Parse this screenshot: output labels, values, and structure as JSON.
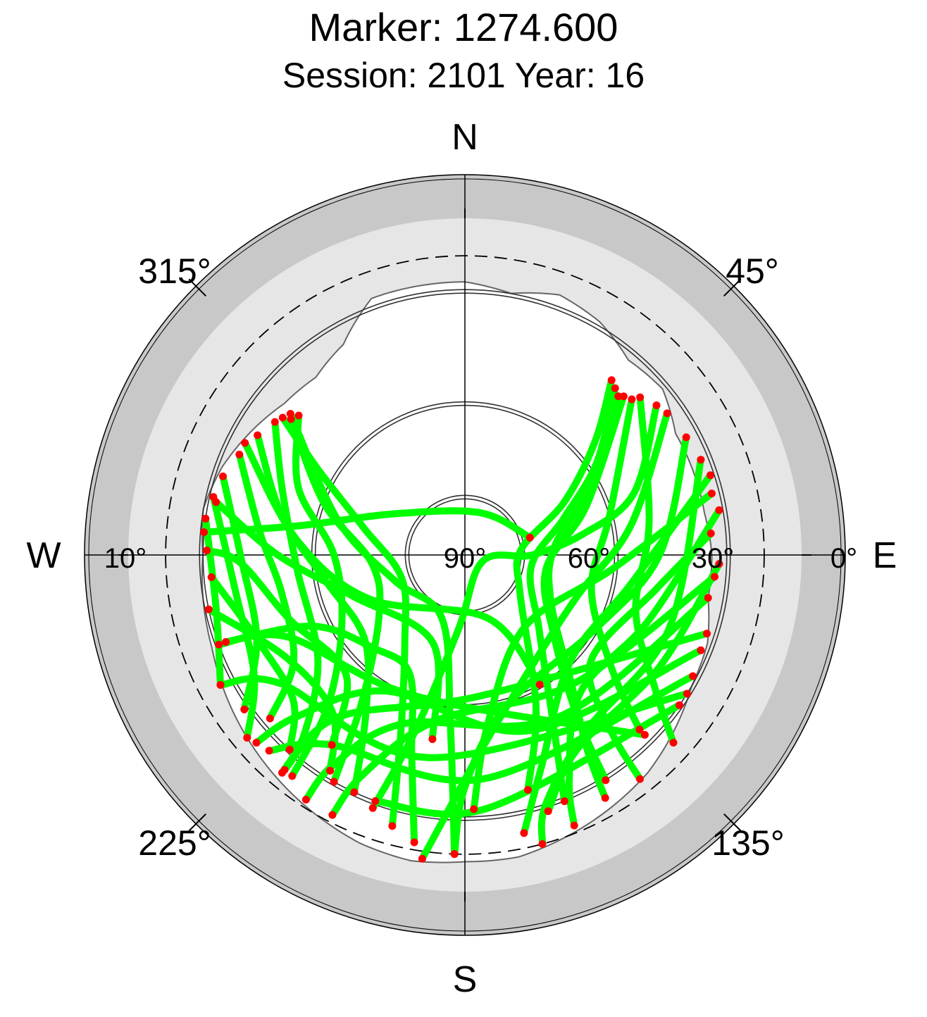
{
  "chart_data": {
    "type": "scatter",
    "projection": "polar-skyplot",
    "title": "Marker: 1274.600",
    "subtitle": "Session: 2101 Year: 16",
    "directions": {
      "north": "N",
      "south": "S",
      "west": "W",
      "east": "E"
    },
    "azimuth_ticks": [
      {
        "azimuth": 45,
        "label": "45°"
      },
      {
        "azimuth": 135,
        "label": "135°"
      },
      {
        "azimuth": 225,
        "label": "225°"
      },
      {
        "azimuth": 315,
        "label": "315°"
      }
    ],
    "elevation_ticks": [
      {
        "elevation": 90,
        "label": "90°"
      },
      {
        "elevation": 60,
        "label": "60°"
      },
      {
        "elevation": 30,
        "label": "30°"
      },
      {
        "elevation": 0,
        "label": "0°"
      },
      {
        "elevation": 10,
        "label": "10°"
      }
    ],
    "cutoff_elevation": 10,
    "elevation_rings": [
      20,
      50,
      75
    ],
    "horizon_mask": [
      {
        "az": 0,
        "el": 17
      },
      {
        "az": 10,
        "el": 19
      },
      {
        "az": 20,
        "el": 16
      },
      {
        "az": 30,
        "el": 18
      },
      {
        "az": 40,
        "el": 22
      },
      {
        "az": 50,
        "el": 21
      },
      {
        "az": 60,
        "el": 25
      },
      {
        "az": 70,
        "el": 25
      },
      {
        "az": 80,
        "el": 25
      },
      {
        "az": 90,
        "el": 24
      },
      {
        "az": 100,
        "el": 24
      },
      {
        "az": 110,
        "el": 21
      },
      {
        "az": 120,
        "el": 20
      },
      {
        "az": 130,
        "el": 17
      },
      {
        "az": 140,
        "el": 14
      },
      {
        "az": 150,
        "el": 12
      },
      {
        "az": 160,
        "el": 10
      },
      {
        "az": 170,
        "el": 8
      },
      {
        "az": 180,
        "el": 8
      },
      {
        "az": 190,
        "el": 7
      },
      {
        "az": 200,
        "el": 8
      },
      {
        "az": 210,
        "el": 10
      },
      {
        "az": 220,
        "el": 12
      },
      {
        "az": 230,
        "el": 14
      },
      {
        "az": 240,
        "el": 16
      },
      {
        "az": 250,
        "el": 18
      },
      {
        "az": 260,
        "el": 19
      },
      {
        "az": 270,
        "el": 20
      },
      {
        "az": 280,
        "el": 19
      },
      {
        "az": 290,
        "el": 21
      },
      {
        "az": 300,
        "el": 24
      },
      {
        "az": 310,
        "el": 27
      },
      {
        "az": 320,
        "el": 28
      },
      {
        "az": 330,
        "el": 25
      },
      {
        "az": 340,
        "el": 17
      },
      {
        "az": 350,
        "el": 17
      },
      {
        "az": 360,
        "el": 17
      }
    ],
    "tracks": [
      [
        {
          "az": 40,
          "el": 29
        },
        {
          "az": 49,
          "el": 44
        },
        {
          "az": 62,
          "el": 60
        },
        {
          "az": 85,
          "el": 75
        },
        {
          "az": 125,
          "el": 72
        },
        {
          "az": 155,
          "el": 45
        },
        {
          "az": 165,
          "el": 25
        }
      ],
      [
        {
          "az": 42,
          "el": 30
        },
        {
          "az": 55,
          "el": 47
        },
        {
          "az": 70,
          "el": 62
        },
        {
          "az": 100,
          "el": 72
        },
        {
          "az": 135,
          "el": 62
        },
        {
          "az": 152,
          "el": 40
        },
        {
          "az": 158,
          "el": 19
        }
      ],
      [
        {
          "az": 44,
          "el": 31
        },
        {
          "az": 60,
          "el": 50
        },
        {
          "az": 85,
          "el": 66
        },
        {
          "az": 118,
          "el": 64
        },
        {
          "az": 140,
          "el": 46
        },
        {
          "az": 148,
          "el": 28
        },
        {
          "az": 150,
          "el": 15
        }
      ],
      [
        {
          "az": 45,
          "el": 30
        },
        {
          "az": 68,
          "el": 55
        },
        {
          "az": 100,
          "el": 68
        },
        {
          "az": 132,
          "el": 58
        },
        {
          "az": 145,
          "el": 38
        },
        {
          "az": 148,
          "el": 19
        }
      ],
      [
        {
          "az": 47,
          "el": 29
        },
        {
          "az": 75,
          "el": 50
        },
        {
          "az": 105,
          "el": 55
        },
        {
          "az": 128,
          "el": 40
        },
        {
          "az": 135,
          "el": 24
        }
      ],
      [
        {
          "az": 48,
          "el": 27
        },
        {
          "az": 80,
          "el": 40
        },
        {
          "az": 108,
          "el": 42
        },
        {
          "az": 125,
          "el": 28
        },
        {
          "az": 132,
          "el": 15
        }
      ],
      [
        {
          "az": 52,
          "el": 25
        },
        {
          "az": 70,
          "el": 42
        },
        {
          "az": 80,
          "el": 58
        },
        {
          "az": 90,
          "el": 72
        },
        {
          "az": 110,
          "el": 85
        },
        {
          "az": 185,
          "el": 70
        },
        {
          "az": 196,
          "el": 40
        },
        {
          "az": 200,
          "el": 18
        }
      ],
      [
        {
          "az": 55,
          "el": 24
        },
        {
          "az": 80,
          "el": 45
        },
        {
          "az": 110,
          "el": 58
        },
        {
          "az": 150,
          "el": 55
        },
        {
          "az": 175,
          "el": 38
        },
        {
          "az": 185,
          "el": 18
        },
        {
          "az": 188,
          "el": 8
        }
      ],
      [
        {
          "az": 62,
          "el": 23
        },
        {
          "az": 90,
          "el": 38
        },
        {
          "az": 120,
          "el": 50
        },
        {
          "az": 165,
          "el": 48
        },
        {
          "az": 180,
          "el": 28
        },
        {
          "az": 182,
          "el": 10
        }
      ],
      [
        {
          "az": 68,
          "el": 22
        },
        {
          "az": 110,
          "el": 32
        },
        {
          "az": 145,
          "el": 33
        },
        {
          "az": 162,
          "el": 20
        },
        {
          "az": 165,
          "el": 10
        }
      ],
      [
        {
          "az": 72,
          "el": 21
        },
        {
          "az": 100,
          "el": 45
        },
        {
          "az": 135,
          "el": 50
        },
        {
          "az": 160,
          "el": 30
        },
        {
          "az": 168,
          "el": 14
        }
      ],
      [
        {
          "az": 76,
          "el": 22
        },
        {
          "az": 95,
          "el": 50
        },
        {
          "az": 140,
          "el": 65
        },
        {
          "az": 172,
          "el": 45
        },
        {
          "az": 178,
          "el": 22
        }
      ],
      [
        {
          "az": 80,
          "el": 21
        },
        {
          "az": 110,
          "el": 38
        },
        {
          "az": 140,
          "el": 42
        },
        {
          "az": 155,
          "el": 24
        },
        {
          "az": 158,
          "el": 12
        }
      ],
      [
        {
          "az": 85,
          "el": 24
        },
        {
          "az": 100,
          "el": 38
        },
        {
          "az": 130,
          "el": 46
        },
        {
          "az": 140,
          "el": 30
        },
        {
          "az": 142,
          "el": 14
        }
      ],
      [
        {
          "az": 92,
          "el": 22
        },
        {
          "az": 120,
          "el": 30
        },
        {
          "az": 150,
          "el": 30
        },
        {
          "az": 162,
          "el": 18
        }
      ],
      [
        {
          "az": 95,
          "el": 23
        },
        {
          "az": 140,
          "el": 45
        },
        {
          "az": 190,
          "el": 45
        },
        {
          "az": 205,
          "el": 25
        },
        {
          "az": 207,
          "el": 12
        }
      ],
      [
        {
          "az": 100,
          "el": 24
        },
        {
          "az": 150,
          "el": 40
        },
        {
          "az": 200,
          "el": 42
        },
        {
          "az": 212,
          "el": 24
        },
        {
          "az": 213,
          "el": 12
        }
      ],
      [
        {
          "az": 108,
          "el": 22
        },
        {
          "az": 175,
          "el": 52
        },
        {
          "az": 218,
          "el": 35
        },
        {
          "az": 220,
          "el": 15
        }
      ],
      [
        {
          "az": 112,
          "el": 22
        },
        {
          "az": 160,
          "el": 40
        },
        {
          "az": 210,
          "el": 48
        },
        {
          "az": 226,
          "el": 28
        },
        {
          "az": 228,
          "el": 15
        }
      ],
      [
        {
          "az": 118,
          "el": 21
        },
        {
          "az": 175,
          "el": 30
        },
        {
          "az": 215,
          "el": 28
        },
        {
          "az": 225,
          "el": 16
        }
      ],
      [
        {
          "az": 122,
          "el": 20
        },
        {
          "az": 190,
          "el": 35
        },
        {
          "az": 235,
          "el": 30
        },
        {
          "az": 242,
          "el": 16
        }
      ],
      [
        {
          "az": 125,
          "el": 20
        },
        {
          "az": 175,
          "el": 22
        },
        {
          "az": 200,
          "el": 20
        }
      ],
      [
        {
          "az": 135,
          "el": 22
        },
        {
          "az": 200,
          "el": 50
        },
        {
          "az": 245,
          "el": 38
        },
        {
          "az": 250,
          "el": 20
        }
      ],
      [
        {
          "az": 307,
          "el": 29
        },
        {
          "az": 300,
          "el": 45
        },
        {
          "az": 285,
          "el": 62
        },
        {
          "az": 250,
          "el": 72
        },
        {
          "az": 215,
          "el": 62
        },
        {
          "az": 200,
          "el": 40
        },
        {
          "az": 195,
          "el": 15
        }
      ],
      [
        {
          "az": 308,
          "el": 31
        },
        {
          "az": 290,
          "el": 50
        },
        {
          "az": 265,
          "el": 65
        },
        {
          "az": 235,
          "el": 62
        },
        {
          "az": 215,
          "el": 42
        },
        {
          "az": 210,
          "el": 20
        }
      ],
      [
        {
          "az": 309,
          "el": 30
        },
        {
          "az": 285,
          "el": 55
        },
        {
          "az": 250,
          "el": 70
        },
        {
          "az": 200,
          "el": 72
        },
        {
          "az": 185,
          "el": 45
        },
        {
          "az": 182,
          "el": 10
        }
      ],
      [
        {
          "az": 310,
          "el": 32
        },
        {
          "az": 292,
          "el": 42
        },
        {
          "az": 270,
          "el": 55
        },
        {
          "az": 240,
          "el": 52
        },
        {
          "az": 222,
          "el": 35
        },
        {
          "az": 218,
          "el": 15
        }
      ],
      [
        {
          "az": 305,
          "el": 28
        },
        {
          "az": 290,
          "el": 38
        },
        {
          "az": 265,
          "el": 45
        },
        {
          "az": 235,
          "el": 42
        },
        {
          "az": 222,
          "el": 26
        },
        {
          "az": 220,
          "el": 14
        }
      ],
      [
        {
          "az": 300,
          "el": 26
        },
        {
          "az": 282,
          "el": 40
        },
        {
          "az": 260,
          "el": 52
        },
        {
          "az": 230,
          "el": 55
        },
        {
          "az": 212,
          "el": 40
        },
        {
          "az": 205,
          "el": 20
        }
      ],
      [
        {
          "az": 294,
          "el": 24
        },
        {
          "az": 276,
          "el": 35
        },
        {
          "az": 258,
          "el": 40
        },
        {
          "az": 238,
          "el": 36
        },
        {
          "az": 230,
          "el": 22
        }
      ],
      [
        {
          "az": 288,
          "el": 22
        },
        {
          "az": 270,
          "el": 30
        },
        {
          "az": 248,
          "el": 30
        },
        {
          "az": 235,
          "el": 18
        }
      ],
      [
        {
          "az": 283,
          "el": 21
        },
        {
          "az": 260,
          "el": 28
        },
        {
          "az": 240,
          "el": 25
        },
        {
          "az": 230,
          "el": 14
        }
      ],
      [
        {
          "az": 278,
          "el": 20
        },
        {
          "az": 258,
          "el": 22
        },
        {
          "az": 242,
          "el": 16
        }
      ],
      [
        {
          "az": 271,
          "el": 21
        },
        {
          "az": 268,
          "el": 30
        },
        {
          "az": 250,
          "el": 40
        },
        {
          "az": 225,
          "el": 45
        },
        {
          "az": 215,
          "el": 28
        }
      ],
      [
        {
          "az": 265,
          "el": 22
        },
        {
          "az": 248,
          "el": 30
        },
        {
          "az": 230,
          "el": 30
        },
        {
          "az": 222,
          "el": 20
        }
      ],
      [
        {
          "az": 275,
          "el": 20
        },
        {
          "az": 280,
          "el": 45
        },
        {
          "az": 300,
          "el": 68
        },
        {
          "az": 20,
          "el": 78
        },
        {
          "az": 75,
          "el": 72
        }
      ],
      [
        {
          "az": 258,
          "el": 20
        },
        {
          "az": 240,
          "el": 35
        },
        {
          "az": 220,
          "el": 35
        },
        {
          "az": 212,
          "el": 22
        }
      ],
      [
        {
          "az": 250,
          "el": 22
        },
        {
          "az": 245,
          "el": 45
        },
        {
          "az": 225,
          "el": 55
        },
        {
          "az": 205,
          "el": 55
        },
        {
          "az": 195,
          "el": 35
        },
        {
          "az": 190,
          "el": 12
        }
      ],
      [
        {
          "az": 282,
          "el": 22
        },
        {
          "az": 270,
          "el": 40
        },
        {
          "az": 250,
          "el": 58
        },
        {
          "az": 200,
          "el": 65
        },
        {
          "az": 190,
          "el": 40
        }
      ],
      [
        {
          "az": 297,
          "el": 24
        },
        {
          "az": 275,
          "el": 45
        },
        {
          "az": 245,
          "el": 62
        },
        {
          "az": 160,
          "el": 72
        },
        {
          "az": 150,
          "el": 50
        }
      ]
    ]
  }
}
